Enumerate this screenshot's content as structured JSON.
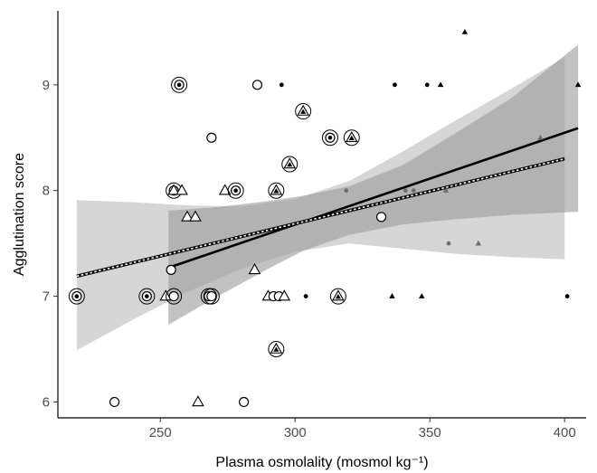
{
  "chart_data": {
    "type": "scatter",
    "title": "",
    "xlabel": "Plasma osmolality (mosmol kg⁻¹)",
    "ylabel": "Agglutination score",
    "xlim": [
      212,
      408
    ],
    "ylim": [
      5.85,
      9.7
    ],
    "xticks": [
      250,
      300,
      350,
      400
    ],
    "yticks": [
      6,
      7,
      8,
      9
    ],
    "grid": false,
    "legend": "none",
    "points": [
      {
        "x": 219,
        "y": 7.0,
        "shape": "circle-dot",
        "ring": true
      },
      {
        "x": 233,
        "y": 6.0,
        "shape": "circle-open",
        "ring": false
      },
      {
        "x": 245,
        "y": 7.0,
        "shape": "circle-dot",
        "ring": true
      },
      {
        "x": 252,
        "y": 7.0,
        "shape": "triangle-open",
        "ring": false
      },
      {
        "x": 254,
        "y": 7.25,
        "shape": "circle-open",
        "ring": false
      },
      {
        "x": 255,
        "y": 7.0,
        "shape": "circle-open",
        "ring": true
      },
      {
        "x": 255,
        "y": 8.0,
        "shape": "circle-open",
        "ring": true
      },
      {
        "x": 255,
        "y": 8.0,
        "shape": "triangle-open",
        "ring": false
      },
      {
        "x": 257,
        "y": 9.0,
        "shape": "circle-dot",
        "ring": true
      },
      {
        "x": 258,
        "y": 8.0,
        "shape": "triangle-open",
        "ring": false
      },
      {
        "x": 260,
        "y": 7.75,
        "shape": "triangle-open",
        "ring": false
      },
      {
        "x": 263,
        "y": 7.75,
        "shape": "triangle-open",
        "ring": false
      },
      {
        "x": 264,
        "y": 6.0,
        "shape": "triangle-open",
        "ring": false
      },
      {
        "x": 268,
        "y": 7.0,
        "shape": "circle-dot",
        "ring": true
      },
      {
        "x": 269,
        "y": 7.0,
        "shape": "circle-open",
        "ring": true
      },
      {
        "x": 269,
        "y": 8.5,
        "shape": "circle-open",
        "ring": false
      },
      {
        "x": 274,
        "y": 8.0,
        "shape": "triangle-open",
        "ring": false
      },
      {
        "x": 278,
        "y": 8.0,
        "shape": "circle-dot",
        "ring": true
      },
      {
        "x": 281,
        "y": 6.0,
        "shape": "circle-open",
        "ring": false
      },
      {
        "x": 285,
        "y": 7.25,
        "shape": "triangle-open",
        "ring": false
      },
      {
        "x": 286,
        "y": 9.0,
        "shape": "circle-open",
        "ring": false
      },
      {
        "x": 290,
        "y": 7.0,
        "shape": "triangle-open",
        "ring": false
      },
      {
        "x": 292,
        "y": 7.0,
        "shape": "circle-open",
        "ring": false
      },
      {
        "x": 293,
        "y": 8.0,
        "shape": "triangle-dot",
        "ring": true
      },
      {
        "x": 293,
        "y": 6.5,
        "shape": "triangle-dot",
        "ring": true
      },
      {
        "x": 294,
        "y": 7.0,
        "shape": "circle-open",
        "ring": false
      },
      {
        "x": 295,
        "y": 9.0,
        "shape": "dot-black",
        "ring": false
      },
      {
        "x": 296,
        "y": 7.0,
        "shape": "triangle-open",
        "ring": false
      },
      {
        "x": 298,
        "y": 8.25,
        "shape": "triangle-dot",
        "ring": true
      },
      {
        "x": 303,
        "y": 8.75,
        "shape": "triangle-dot",
        "ring": true
      },
      {
        "x": 304,
        "y": 7.0,
        "shape": "dot-black",
        "ring": false
      },
      {
        "x": 313,
        "y": 8.5,
        "shape": "circle-dot",
        "ring": true
      },
      {
        "x": 316,
        "y": 7.0,
        "shape": "triangle-dot",
        "ring": true
      },
      {
        "x": 319,
        "y": 8.0,
        "shape": "dot-gray",
        "ring": false
      },
      {
        "x": 321,
        "y": 8.5,
        "shape": "triangle-dot",
        "ring": true
      },
      {
        "x": 332,
        "y": 7.75,
        "shape": "circle-open",
        "ring": false
      },
      {
        "x": 336,
        "y": 7.0,
        "shape": "triangle-black",
        "ring": false
      },
      {
        "x": 337,
        "y": 9.0,
        "shape": "dot-black",
        "ring": false
      },
      {
        "x": 341,
        "y": 8.0,
        "shape": "dot-gray",
        "ring": false
      },
      {
        "x": 344,
        "y": 8.0,
        "shape": "dot-gray",
        "ring": false
      },
      {
        "x": 347,
        "y": 7.0,
        "shape": "triangle-black",
        "ring": false
      },
      {
        "x": 349,
        "y": 9.0,
        "shape": "dot-black",
        "ring": false
      },
      {
        "x": 354,
        "y": 9.0,
        "shape": "triangle-black",
        "ring": false
      },
      {
        "x": 356,
        "y": 8.0,
        "shape": "triangle-gray",
        "ring": false
      },
      {
        "x": 357,
        "y": 7.5,
        "shape": "dot-gray",
        "ring": false
      },
      {
        "x": 363,
        "y": 9.5,
        "shape": "triangle-black",
        "ring": false
      },
      {
        "x": 368,
        "y": 7.5,
        "shape": "triangle-gray",
        "ring": false
      },
      {
        "x": 391,
        "y": 8.5,
        "shape": "triangle-gray",
        "ring": false
      },
      {
        "x": 401,
        "y": 7.0,
        "shape": "dot-black",
        "ring": false
      },
      {
        "x": 405,
        "y": 9.0,
        "shape": "triangle-black",
        "ring": false
      }
    ],
    "fits": [
      {
        "style": "solid",
        "color": "#000000",
        "x": [
          253,
          405
        ],
        "y": [
          7.27,
          8.59
        ],
        "band_color": "#9a9a9a",
        "band_opacity": 0.6,
        "band": {
          "x": [
            253,
            270,
            290,
            303,
            320,
            340,
            360,
            380,
            405
          ],
          "lower": [
            6.73,
            6.98,
            7.26,
            7.43,
            7.58,
            7.68,
            7.73,
            7.77,
            7.8
          ],
          "upper": [
            7.81,
            7.84,
            7.9,
            7.95,
            8.04,
            8.24,
            8.55,
            8.87,
            9.38
          ]
        }
      },
      {
        "style": "dashed-white",
        "color": "#000000",
        "x": [
          219,
          400
        ],
        "y": [
          7.19,
          8.3
        ],
        "band_color": "#cfcfcf",
        "band_opacity": 0.85,
        "band": {
          "x": [
            219,
            240,
            260,
            280,
            300,
            320,
            340,
            360,
            380,
            400
          ],
          "lower": [
            6.49,
            6.78,
            7.04,
            7.26,
            7.42,
            7.5,
            7.45,
            7.4,
            7.37,
            7.35
          ],
          "upper": [
            7.91,
            7.89,
            7.86,
            7.85,
            7.92,
            8.09,
            8.37,
            8.67,
            8.96,
            9.26
          ]
        }
      }
    ]
  }
}
